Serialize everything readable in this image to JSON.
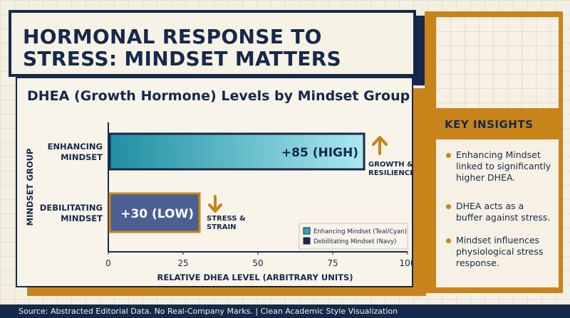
{
  "title": "HORMONAL RESPONSE TO STRESS: MINDSET MATTERS",
  "chart_data": {
    "type": "bar",
    "orientation": "horizontal",
    "title": "DHEA (Growth Hormone) Levels by Mindset Group",
    "xlabel": "RELATIVE DHEA LEVEL (ARBITRARY UNITS)",
    "ylabel": "MINDSET GROUP",
    "xlim": [
      0,
      100
    ],
    "x_ticks": [
      "0",
      "25",
      "50",
      "75",
      "100"
    ],
    "categories": [
      "ENHANCING MINDSET",
      "DEBILITATING MINDSET"
    ],
    "values": [
      85,
      30
    ],
    "bar_labels": [
      "+85 (HIGH)",
      "+30 (LOW)"
    ],
    "annotations": [
      {
        "text": "GROWTH & RESILIENCE",
        "arrow": "up"
      },
      {
        "text": "STRESS & STRAIN",
        "arrow": "down"
      }
    ],
    "legend": {
      "placement": "bottom-right",
      "entries": [
        {
          "label": "Enhancing Mindset (Teal/Cyan)",
          "color": "#2aa7b8"
        },
        {
          "label": "Debilitating Mindset (Navy)",
          "color": "#15294b"
        }
      ]
    },
    "colors": {
      "enhancing": "#2aa7b8",
      "debilitating": "#4a5f92",
      "accent": "#c8841a"
    }
  },
  "insights": {
    "heading": "KEY INSIGHTS",
    "items": [
      "Enhancing Mindset linked to significantly higher DHEA.",
      "DHEA acts as a buffer against stress.",
      "Mindset influences physiological stress response."
    ]
  },
  "footer": "Source: Abstracted Editorial Data. No Real-Company Marks. | Clean Academic Style Visualization"
}
